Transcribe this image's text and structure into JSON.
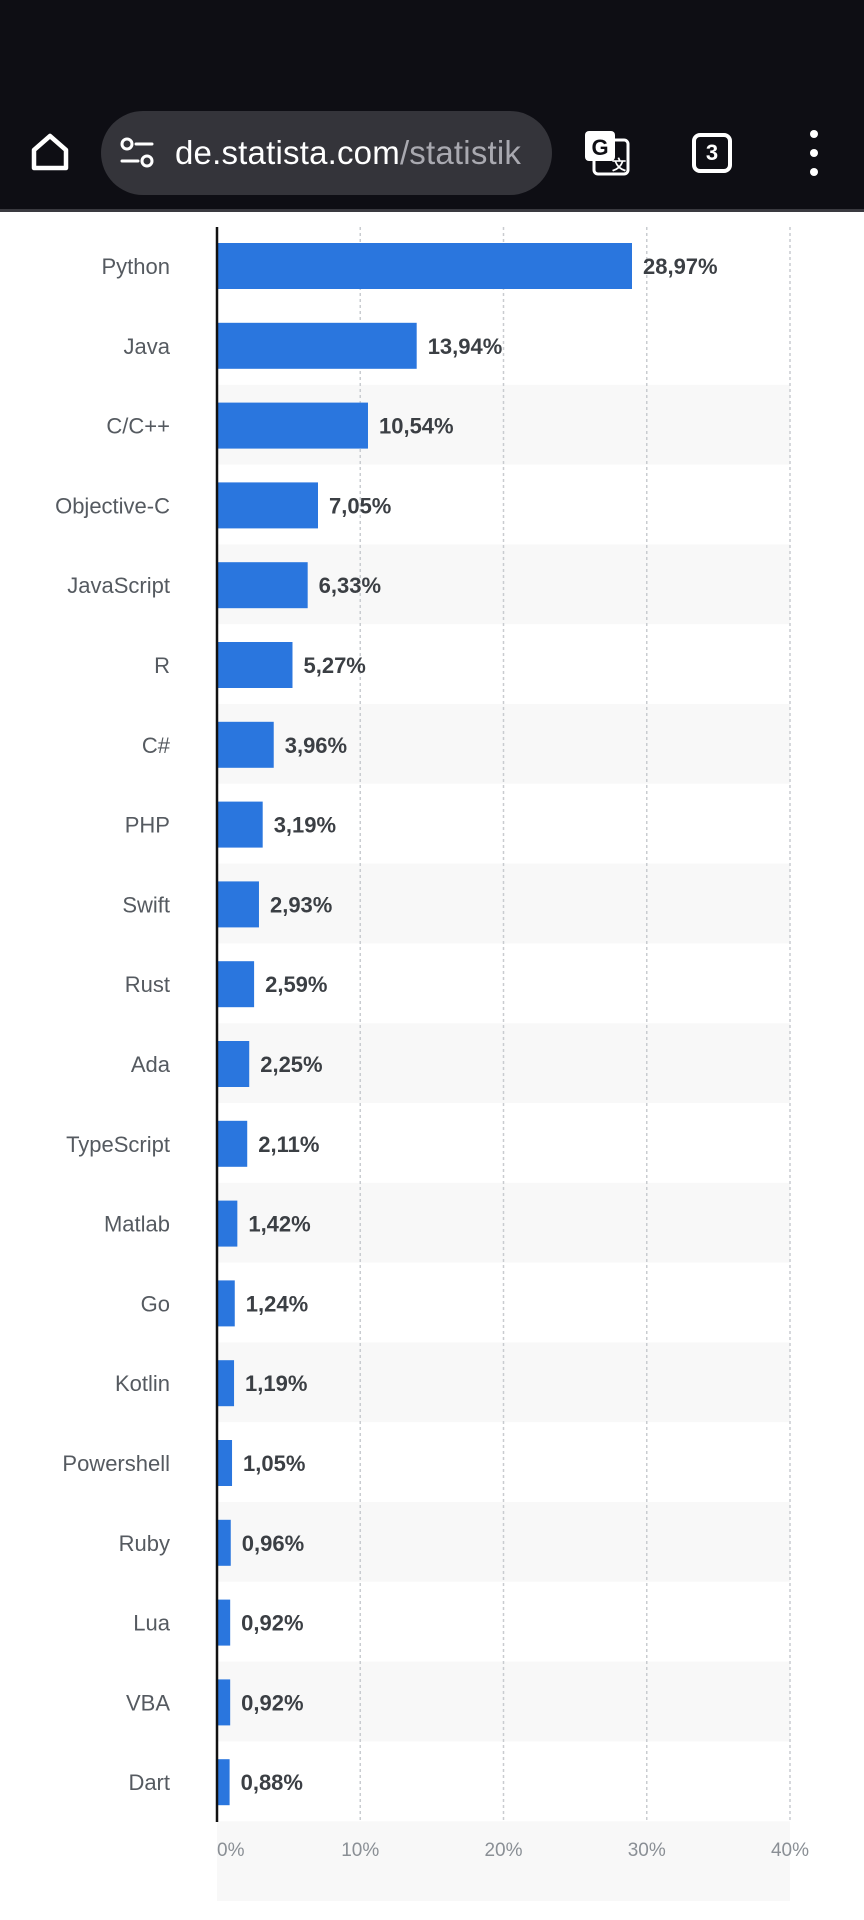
{
  "browser": {
    "url_host": "de.statista.com",
    "url_path": "/statistik",
    "tab_count": "3",
    "icons": {
      "home": "home-icon",
      "site_info": "site-info-icon",
      "translate": "translate-icon",
      "menu": "more-vert-icon"
    }
  },
  "chart_data": {
    "type": "bar",
    "orientation": "horizontal",
    "categories": [
      "Python",
      "Java",
      "C/C++",
      "Objective-C",
      "JavaScript",
      "R",
      "C#",
      "PHP",
      "Swift",
      "Rust",
      "Ada",
      "TypeScript",
      "Matlab",
      "Go",
      "Kotlin",
      "Powershell",
      "Ruby",
      "Lua",
      "VBA",
      "Dart"
    ],
    "values": [
      28.97,
      13.94,
      10.54,
      7.05,
      6.33,
      5.27,
      3.96,
      3.19,
      2.93,
      2.59,
      2.25,
      2.11,
      1.42,
      1.24,
      1.19,
      1.05,
      0.96,
      0.92,
      0.92,
      0.88
    ],
    "value_labels": [
      "28,97%",
      "13,94%",
      "10,54%",
      "7,05%",
      "6,33%",
      "5,27%",
      "3,96%",
      "3,19%",
      "2,93%",
      "2,59%",
      "2,25%",
      "2,11%",
      "1,42%",
      "1,24%",
      "1,19%",
      "1,05%",
      "0,96%",
      "0,92%",
      "0,92%",
      "0,88%"
    ],
    "xlim": [
      0,
      40
    ],
    "ticks": [
      0,
      10,
      20,
      30,
      40
    ],
    "tick_labels": [
      "0%",
      "10%",
      "20%",
      "30%",
      "40%"
    ],
    "grid": true,
    "bar_color": "#2a76de",
    "row_stripe_color": "#f8f8f8"
  }
}
